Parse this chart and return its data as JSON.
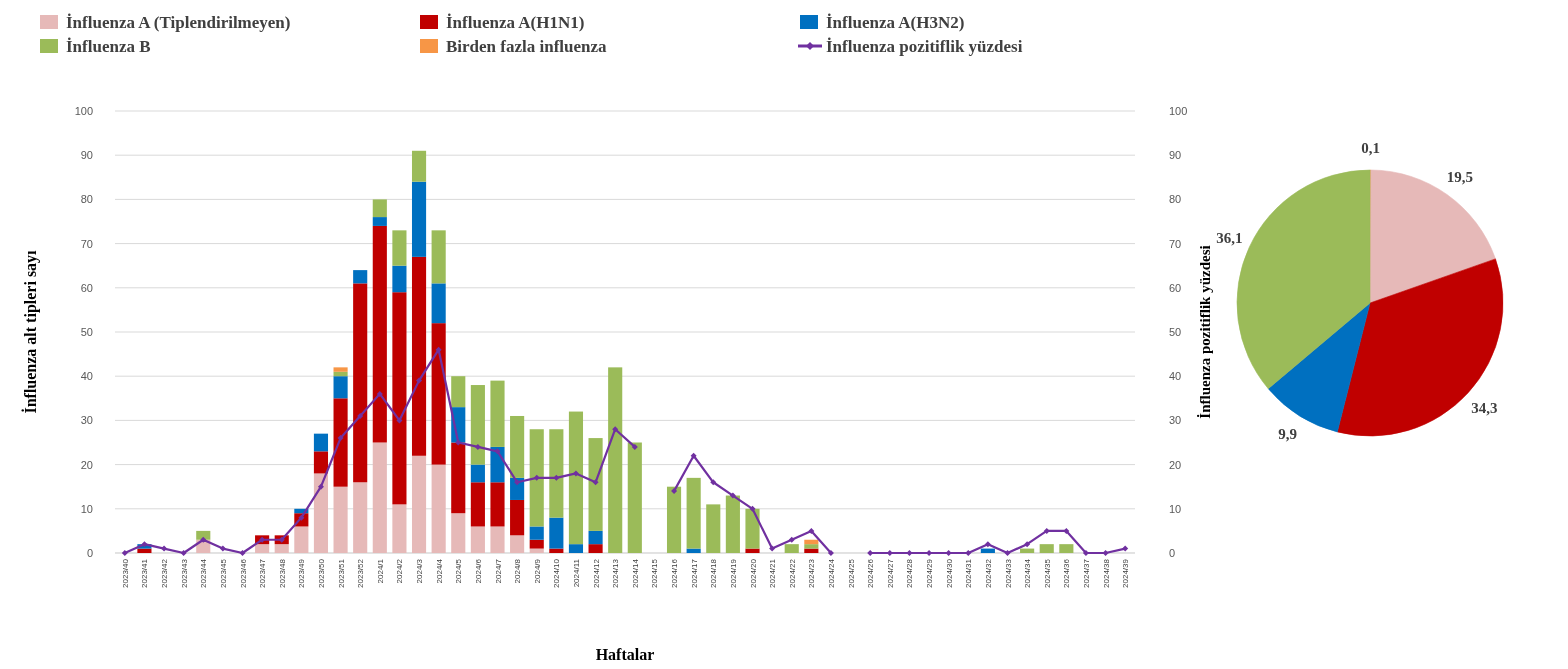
{
  "chart_data": [
    {
      "type": "bar",
      "stacked": true,
      "xlabel": "Haftalar",
      "ylabel": "İnfluenza alt tipleri sayı",
      "y2label": "İnfluenza pozitiflik yüzdesi",
      "ylim": [
        0,
        100
      ],
      "yticks": [
        0,
        10,
        20,
        30,
        40,
        50,
        60,
        70,
        80,
        90,
        100
      ],
      "y2lim": [
        0,
        100
      ],
      "y2ticks": [
        0,
        10,
        20,
        30,
        40,
        50,
        60,
        70,
        80,
        90,
        100
      ],
      "grid": "y",
      "legend": "top left",
      "marker": "diamond",
      "categories": [
        "2023/40",
        "2023/41",
        "2023/42",
        "2023/43",
        "2023/44",
        "2023/45",
        "2023/46",
        "2023/47",
        "2023/48",
        "2023/49",
        "2023/50",
        "2023/51",
        "2023/52",
        "2024/1",
        "2024/2",
        "2024/3",
        "2024/4",
        "2024/5",
        "2024/6",
        "2024/7",
        "2024/8",
        "2024/9",
        "2024/10",
        "2024/11",
        "2024/12",
        "2024/13",
        "2024/14",
        "2024/15",
        "2024/16",
        "2024/17",
        "2024/18",
        "2024/19",
        "2024/20",
        "2024/21",
        "2024/22",
        "2024/23",
        "2024/24",
        "2024/25",
        "2024/26",
        "2024/27",
        "2024/28",
        "2024/29",
        "2024/30",
        "2024/31",
        "2024/32",
        "2024/33",
        "2024/34",
        "2024/35",
        "2024/36",
        "2024/37",
        "2024/38",
        "2024/39"
      ],
      "series": [
        {
          "name": "İnfluenza A (Tiplendirilmeyen)",
          "color": "#e6b9b8",
          "values": [
            0,
            0,
            0,
            0,
            3,
            0,
            0,
            2,
            2,
            6,
            18,
            15,
            16,
            25,
            11,
            22,
            20,
            9,
            6,
            6,
            4,
            1,
            0,
            0,
            0,
            0,
            0,
            0,
            0,
            0,
            0,
            0,
            0,
            0,
            0,
            0,
            0,
            0,
            0,
            0,
            0,
            0,
            0,
            0,
            0,
            0,
            0,
            0,
            0,
            0,
            0,
            0
          ]
        },
        {
          "name": "İnfluenza A(H1N1)",
          "color": "#c00000",
          "values": [
            0,
            1,
            0,
            0,
            0,
            0,
            0,
            2,
            2,
            3,
            5,
            20,
            45,
            49,
            48,
            45,
            32,
            16,
            10,
            10,
            8,
            2,
            1,
            0,
            2,
            0,
            0,
            0,
            0,
            0,
            0,
            0,
            1,
            0,
            0,
            1,
            0,
            0,
            0,
            0,
            0,
            0,
            0,
            0,
            0,
            0,
            0,
            0,
            0,
            0,
            0,
            0
          ]
        },
        {
          "name": "İnfluenza A(H3N2)",
          "color": "#0070c0",
          "values": [
            0,
            1,
            0,
            0,
            0,
            0,
            0,
            0,
            0,
            1,
            4,
            5,
            3,
            2,
            6,
            17,
            9,
            8,
            4,
            8,
            5,
            3,
            7,
            2,
            3,
            0,
            0,
            0,
            0,
            1,
            0,
            0,
            0,
            0,
            0,
            0,
            0,
            0,
            0,
            0,
            0,
            0,
            0,
            0,
            1,
            0,
            0,
            0,
            0,
            0,
            0,
            0
          ]
        },
        {
          "name": "İnfluenza B",
          "color": "#9bbb59",
          "values": [
            0,
            0,
            0,
            0,
            2,
            0,
            0,
            0,
            0,
            0,
            0,
            1,
            0,
            4,
            8,
            7,
            12,
            7,
            18,
            15,
            14,
            22,
            20,
            30,
            21,
            42,
            25,
            0,
            15,
            16,
            11,
            13,
            9,
            0,
            2,
            1,
            0,
            0,
            0,
            0,
            0,
            0,
            0,
            0,
            0,
            0,
            1,
            2,
            2,
            0,
            0,
            0
          ]
        },
        {
          "name": "Birden fazla influenza",
          "color": "#f79646",
          "values": [
            0,
            0,
            0,
            0,
            0,
            0,
            0,
            0,
            0,
            0,
            0,
            1,
            0,
            0,
            0,
            0,
            0,
            0,
            0,
            0,
            0,
            0,
            0,
            0,
            0,
            0,
            0,
            0,
            0,
            0,
            0,
            0,
            0,
            0,
            0,
            1,
            0,
            0,
            0,
            0,
            0,
            0,
            0,
            0,
            0,
            0,
            0,
            0,
            0,
            0,
            0,
            0
          ]
        },
        {
          "name": "İnfluenza pozitiflik yüzdesi",
          "type": "line",
          "axis": "y2",
          "color": "#7030a0",
          "values": [
            0,
            2,
            1,
            0,
            3,
            1,
            0,
            3,
            3,
            8,
            15,
            26,
            31,
            36,
            30,
            39,
            46,
            25,
            24,
            23,
            16,
            17,
            17,
            18,
            16,
            28,
            24,
            null,
            14,
            22,
            16,
            13,
            10,
            1,
            3,
            5,
            0,
            null,
            0,
            0,
            0,
            0,
            0,
            0,
            2,
            0,
            2,
            5,
            5,
            0,
            0,
            1
          ]
        }
      ]
    },
    {
      "type": "pie",
      "categories": [
        null,
        null,
        null,
        null,
        null
      ],
      "values": [
        0.1,
        19.5,
        34.3,
        9.9,
        36.1
      ],
      "colors": [
        "#f79646",
        "#e6b9b8",
        "#c00000",
        "#0070c0",
        "#9bbb59"
      ],
      "value_labels": [
        "0,1",
        "19,5",
        "34,3",
        "9,9",
        "36,1"
      ]
    }
  ]
}
